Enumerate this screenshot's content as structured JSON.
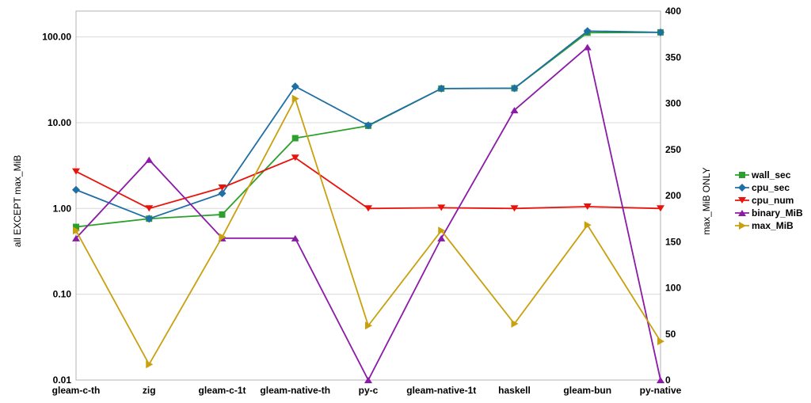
{
  "chart_data": {
    "type": "line",
    "categories": [
      "gleam-c-th",
      "zig",
      "gleam-c-1t",
      "gleam-native-th",
      "py-c",
      "gleam-native-1t",
      "haskell",
      "gleam-bun",
      "py-native"
    ],
    "ylabel": "all EXCEPT max_MiB",
    "y2label": "max_MiB ONLY",
    "yscale": "log",
    "ylim": [
      0.01,
      200
    ],
    "y_ticks": [
      "0.01",
      "0.10",
      "1.00",
      "10.00",
      "100.00"
    ],
    "y2lim": [
      0,
      400
    ],
    "y2_ticks": [
      "0",
      "50",
      "100",
      "150",
      "200",
      "250",
      "300",
      "350",
      "400"
    ],
    "grid": true,
    "legend_position": "right",
    "series": [
      {
        "name": "wall_sec",
        "axis": "left",
        "color": "#2ca02c",
        "marker": "square",
        "values": [
          0.61,
          0.76,
          0.85,
          6.6,
          9.2,
          25.0,
          25.2,
          112,
          113
        ]
      },
      {
        "name": "cpu_sec",
        "axis": "left",
        "color": "#1f6fa5",
        "marker": "diamond",
        "values": [
          1.65,
          0.76,
          1.5,
          26.5,
          9.3,
          25.0,
          25.2,
          117,
          113
        ]
      },
      {
        "name": "cpu_num",
        "axis": "left",
        "color": "#e8140c",
        "marker": "triangle-down",
        "values": [
          2.7,
          1.0,
          1.75,
          3.9,
          1.0,
          1.02,
          1.0,
          1.05,
          1.0
        ]
      },
      {
        "name": "binary_MiB",
        "axis": "left",
        "color": "#8b1aa8",
        "marker": "triangle-up",
        "values": [
          0.45,
          3.7,
          0.45,
          0.45,
          0.01,
          0.45,
          14,
          76,
          0.01
        ]
      },
      {
        "name": "max_MiB",
        "axis": "right",
        "color": "#c9a00e",
        "marker": "triangle-right",
        "values": [
          162,
          17,
          155,
          305,
          59,
          162,
          61,
          168,
          42
        ]
      }
    ]
  }
}
